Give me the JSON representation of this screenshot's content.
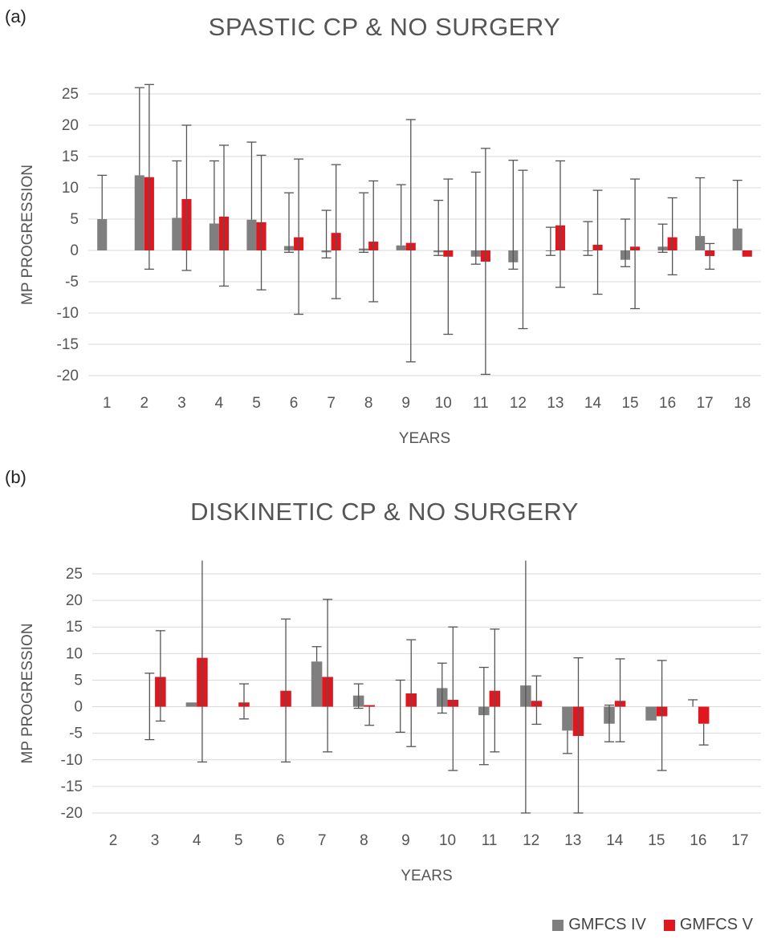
{
  "chart_data": [
    {
      "type": "bar",
      "panel": "(a)",
      "title": "SPASTIC CP & NO SURGERY",
      "xlabel": "YEARS",
      "ylabel": "MP PROGRESSION",
      "ylim": [
        -20,
        25
      ],
      "yticks": [
        25,
        20,
        15,
        10,
        5,
        0,
        -5,
        -10,
        -15,
        -20
      ],
      "grid": true,
      "categories": [
        "1",
        "2",
        "3",
        "4",
        "5",
        "6",
        "7",
        "8",
        "9",
        "10",
        "11",
        "12",
        "13",
        "14",
        "15",
        "16",
        "17",
        "18"
      ],
      "series": [
        {
          "name": "GMFCS IV",
          "color": "#7f7f7f",
          "values": [
            5,
            12,
            5.2,
            4.3,
            4.9,
            0.7,
            -0.3,
            0.3,
            0.8,
            -0.3,
            -1,
            -1.9,
            0,
            0,
            -1.5,
            0.6,
            2.3,
            3.5
          ],
          "err_high": [
            12,
            26,
            14.3,
            14.3,
            17.3,
            9.2,
            6.4,
            9.2,
            10.5,
            8,
            12.5,
            14.4,
            3.7,
            4.6,
            5,
            4.2,
            11.6,
            11.2
          ],
          "err_low": [
            null,
            null,
            null,
            null,
            null,
            -0.3,
            -1.2,
            -0.3,
            null,
            -0.8,
            -2.2,
            -3,
            -0.8,
            -0.8,
            -2.6,
            -0.3,
            null,
            null
          ]
        },
        {
          "name": "GMFCS V",
          "color": "#e0171f",
          "values": [
            null,
            11.7,
            8.2,
            5.4,
            4.5,
            2.1,
            2.8,
            1.4,
            1.2,
            -1,
            -1.8,
            null,
            4,
            0.9,
            0.6,
            2.1,
            -0.9,
            -1
          ],
          "err_high": [
            null,
            26.5,
            20,
            16.8,
            15.2,
            14.6,
            13.7,
            11.1,
            20.9,
            11.4,
            16.3,
            12.8,
            14.3,
            9.6,
            11.4,
            8.4,
            1.1,
            null
          ],
          "err_low": [
            null,
            -3,
            -3.2,
            -5.7,
            -6.3,
            -10.2,
            -7.7,
            -8.2,
            -17.8,
            -13.4,
            -19.8,
            -12.5,
            -5.9,
            -7,
            -9.3,
            -3.9,
            -3,
            null
          ]
        }
      ]
    },
    {
      "type": "bar",
      "panel": "(b)",
      "title": "DISKINETIC CP & NO SURGERY",
      "xlabel": "YEARS",
      "ylabel": "MP PROGRESSION",
      "ylim": [
        -20,
        25
      ],
      "yticks": [
        25,
        20,
        15,
        10,
        5,
        0,
        -5,
        -10,
        -15,
        -20
      ],
      "grid": true,
      "categories": [
        "2",
        "3",
        "4",
        "5",
        "6",
        "7",
        "8",
        "9",
        "10",
        "11",
        "12",
        "13",
        "14",
        "15",
        "16",
        "17"
      ],
      "series": [
        {
          "name": "GMFCS IV",
          "color": "#7f7f7f",
          "values": [
            null,
            null,
            0.8,
            null,
            null,
            8.5,
            2.1,
            null,
            3.5,
            -1.6,
            4,
            -4.5,
            -3.2,
            -2.6,
            null,
            null
          ],
          "err_high": [
            null,
            6.3,
            null,
            null,
            null,
            11.3,
            4.3,
            5,
            8.2,
            7.4,
            27.5,
            null,
            0.3,
            null,
            1.3,
            null
          ],
          "err_low": [
            null,
            -6.2,
            null,
            null,
            null,
            null,
            -0.3,
            -4.8,
            -1.2,
            -10.9,
            -20,
            -8.8,
            -6.6,
            null,
            null,
            null
          ]
        },
        {
          "name": "GMFCS V",
          "color": "#e0171f",
          "values": [
            null,
            5.6,
            9.2,
            0.8,
            3,
            5.6,
            0.3,
            2.5,
            1.3,
            3,
            1.1,
            -5.5,
            1.1,
            -1.8,
            -3.2,
            null
          ],
          "err_high": [
            null,
            14.3,
            27.5,
            4.3,
            16.5,
            20.2,
            null,
            12.6,
            15,
            14.6,
            5.8,
            9.2,
            9,
            8.7,
            null,
            null
          ],
          "err_low": [
            null,
            -2.7,
            -10.4,
            -2.3,
            -10.4,
            -8.5,
            -3.5,
            -7.5,
            -12,
            -8.5,
            -3.3,
            -20,
            -6.6,
            -12,
            -7.2,
            null
          ]
        }
      ]
    }
  ],
  "legend": [
    {
      "label": "GMFCS IV",
      "color": "#7f7f7f"
    },
    {
      "label": "GMFCS V",
      "color": "#e0171f"
    }
  ]
}
